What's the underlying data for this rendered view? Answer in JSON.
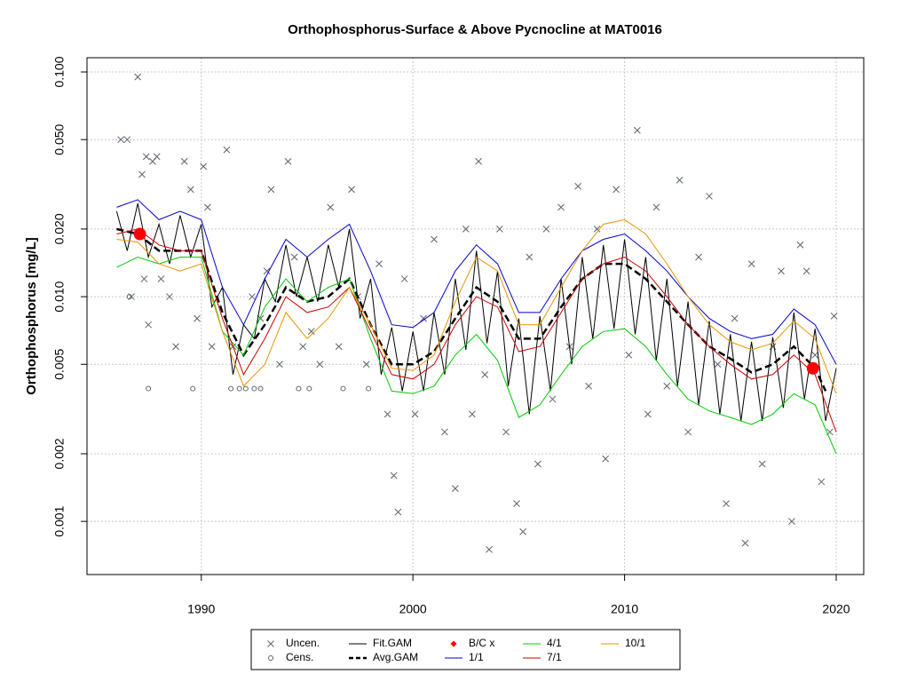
{
  "chart_data": {
    "type": "line",
    "title": "Orthophosphorus-Surface & Above Pycnocline at MAT0016",
    "y_label": "Orthophosphorus [mg/L]",
    "xlim": [
      1984.6,
      2021.3
    ],
    "xticks": [
      1990,
      2000,
      2010,
      2020
    ],
    "ylim": [
      0.00058,
      0.1157
    ],
    "log_y": true,
    "yticks": [
      0.001,
      0.002,
      0.005,
      {
        "value": 0.01,
        "label": "0.010"
      },
      {
        "value": 0.02,
        "label": "0.020"
      },
      {
        "value": 0.05,
        "label": "0.050"
      },
      {
        "value": 0.1,
        "label": "0.100"
      }
    ],
    "grid": true,
    "legend": "bottom",
    "series": [
      {
        "name": "Uncen.",
        "color": "#5a6470",
        "mode": "points",
        "marker": "x",
        "x": [
          1986.2,
          1986.5,
          1986.7,
          1987,
          1987.2,
          1987.4,
          1987.7,
          1987.9,
          1987.3,
          1987.5,
          1988.1,
          1988.5,
          1988.8,
          1989.2,
          1989.5,
          1989.8,
          1990.1,
          1990.3,
          1990.5,
          1991.2,
          1991.5,
          1992.4,
          1992.8,
          1993.1,
          1993.3,
          1993.7,
          1994.1,
          1994.4,
          1994.8,
          1995.2,
          1995.6,
          1996.1,
          1996.5,
          1997.1,
          1997.4,
          1997.8,
          1998.4,
          1998.8,
          1999.1,
          1999.3,
          1999.6,
          2000.1,
          2000.5,
          2001,
          2001.5,
          2002,
          2002.5,
          2002.8,
          2003.1,
          2003.4,
          2003.6,
          2004.1,
          2004.4,
          2004.9,
          2005.2,
          2005.5,
          2005.9,
          2006.3,
          2006.6,
          2007,
          2007.4,
          2007.8,
          2008.3,
          2008.7,
          2009.1,
          2009.6,
          2010.2,
          2010.6,
          2011.1,
          2011.5,
          2012,
          2012.6,
          2013,
          2013.5,
          2014,
          2014.4,
          2014.8,
          2015.2,
          2015.7,
          2016,
          2016.5,
          2017,
          2017.4,
          2017.9,
          2018.3,
          2018.6,
          2019,
          2019.3,
          2019.7,
          2019.9
        ],
        "values": [
          0.05,
          0.05,
          0.01,
          0.095,
          0.035,
          0.042,
          0.04,
          0.042,
          0.012,
          0.0075,
          0.012,
          0.01,
          0.006,
          0.04,
          0.03,
          0.008,
          0.038,
          0.025,
          0.006,
          0.045,
          0.006,
          0.01,
          0.008,
          0.013,
          0.03,
          0.005,
          0.04,
          0.015,
          0.006,
          0.007,
          0.005,
          0.025,
          0.006,
          0.03,
          0.01,
          0.005,
          0.014,
          0.003,
          0.0016,
          0.0011,
          0.012,
          0.003,
          0.008,
          0.018,
          0.0025,
          0.0014,
          0.02,
          0.003,
          0.04,
          0.0045,
          0.00075,
          0.02,
          0.0025,
          0.0012,
          0.0009,
          0.015,
          0.0018,
          0.02,
          0.0035,
          0.025,
          0.006,
          0.031,
          0.004,
          0.02,
          0.0019,
          0.03,
          0.0055,
          0.055,
          0.003,
          0.025,
          0.004,
          0.033,
          0.0025,
          0.015,
          0.028,
          0.005,
          0.0012,
          0.008,
          0.0008,
          0.014,
          0.0018,
          0.006,
          0.013,
          0.001,
          0.017,
          0.013,
          0.0055,
          0.0015,
          0.0025,
          0.0082
        ]
      },
      {
        "name": "Cens.",
        "color": "#5a6470",
        "mode": "points",
        "marker": "circle",
        "x": [
          1986.6,
          1987.5,
          1989.6,
          1991.4,
          1991.8,
          1992.1,
          1992.5,
          1992.8,
          1994.6,
          1995.1,
          1996.7,
          1997.9
        ],
        "values": [
          0.01,
          0.0039,
          0.0039,
          0.0039,
          0.0039,
          0.0039,
          0.0039,
          0.0039,
          0.0039,
          0.0039,
          0.0039,
          0.0039
        ]
      },
      {
        "name": "Fit.GAM",
        "color": "#000000",
        "mode": "line",
        "width": 1,
        "x": [
          1986,
          1986.5,
          1987,
          1987.5,
          1988,
          1988.5,
          1989,
          1989.5,
          1990,
          1990.5,
          1991,
          1991.5,
          1992,
          1992.5,
          1993,
          1993.5,
          1994,
          1994.5,
          1995,
          1995.5,
          1996,
          1996.5,
          1997,
          1997.5,
          1998,
          1998.5,
          1999,
          1999.5,
          2000,
          2000.5,
          2001,
          2001.5,
          2002,
          2002.5,
          2003,
          2003.5,
          2004,
          2004.5,
          2005,
          2005.5,
          2006,
          2006.5,
          2007,
          2007.5,
          2008,
          2008.5,
          2009,
          2009.5,
          2010,
          2010.5,
          2011,
          2011.5,
          2012,
          2012.5,
          2013,
          2013.5,
          2014,
          2014.5,
          2015,
          2015.5,
          2016,
          2016.5,
          2017,
          2017.5,
          2018,
          2018.5,
          2019,
          2019.5,
          2020
        ],
        "values": [
          0.024,
          0.016,
          0.026,
          0.015,
          0.021,
          0.014,
          0.023,
          0.015,
          0.021,
          0.009,
          0.011,
          0.0045,
          0.0075,
          0.0065,
          0.012,
          0.0095,
          0.017,
          0.01,
          0.015,
          0.0095,
          0.017,
          0.011,
          0.02,
          0.008,
          0.012,
          0.0045,
          0.0073,
          0.0038,
          0.007,
          0.0038,
          0.0085,
          0.0045,
          0.012,
          0.0058,
          0.016,
          0.0062,
          0.013,
          0.004,
          0.008,
          0.003,
          0.0082,
          0.0038,
          0.012,
          0.005,
          0.015,
          0.0065,
          0.017,
          0.0072,
          0.018,
          0.0068,
          0.015,
          0.0052,
          0.012,
          0.004,
          0.0095,
          0.0033,
          0.0078,
          0.003,
          0.0068,
          0.0028,
          0.0063,
          0.0028,
          0.0066,
          0.0032,
          0.0085,
          0.0035,
          0.0072,
          0.0028,
          0.0048
        ]
      },
      {
        "name": "Avg.GAM",
        "color": "#000000",
        "mode": "line",
        "width": 2.5,
        "dash": true,
        "x": [
          1986,
          1987,
          1988,
          1989,
          1990,
          1991,
          1992,
          1993,
          1994,
          1995,
          1996,
          1997,
          1998,
          1999,
          2000,
          2001,
          2002,
          2003,
          2004,
          2005,
          2006,
          2007,
          2008,
          2009,
          2010,
          2011,
          2012,
          2013,
          2014,
          2015,
          2016,
          2017,
          2018,
          2019,
          2019.5
        ],
        "values": [
          0.02,
          0.019,
          0.016,
          0.016,
          0.016,
          0.0085,
          0.0055,
          0.0075,
          0.011,
          0.0095,
          0.01,
          0.012,
          0.0075,
          0.005,
          0.005,
          0.0057,
          0.008,
          0.011,
          0.0095,
          0.0065,
          0.0065,
          0.009,
          0.012,
          0.014,
          0.014,
          0.012,
          0.0095,
          0.0075,
          0.006,
          0.0053,
          0.0046,
          0.005,
          0.006,
          0.0048,
          0.0038
        ]
      },
      {
        "name": "B/C x",
        "color": "#ff0000",
        "mode": "points",
        "marker": "dot",
        "x": [
          1987.1,
          2018.9
        ],
        "values": [
          0.019,
          0.0048
        ]
      },
      {
        "name": "1/1",
        "color": "#0000cc",
        "mode": "line",
        "width": 1,
        "x": [
          1986,
          1987,
          1988,
          1989,
          1990,
          1991,
          1992,
          1993,
          1994,
          1995,
          1996,
          1997,
          1998,
          1999,
          2000,
          2001,
          2002,
          2003,
          2004,
          2005,
          2006,
          2007,
          2008,
          2009,
          2010,
          2011,
          2012,
          2013,
          2014,
          2015,
          2016,
          2017,
          2018,
          2019,
          2020
        ],
        "values": [
          0.025,
          0.027,
          0.022,
          0.024,
          0.022,
          0.011,
          0.0075,
          0.012,
          0.018,
          0.015,
          0.018,
          0.021,
          0.013,
          0.0075,
          0.0073,
          0.0085,
          0.013,
          0.017,
          0.014,
          0.0085,
          0.0085,
          0.012,
          0.016,
          0.018,
          0.019,
          0.016,
          0.013,
          0.01,
          0.008,
          0.007,
          0.0065,
          0.0068,
          0.0088,
          0.0075,
          0.005
        ]
      },
      {
        "name": "4/1",
        "color": "#00cc00",
        "mode": "line",
        "width": 1,
        "x": [
          1986,
          1987,
          1988,
          1989,
          1990,
          1991,
          1992,
          1993,
          1994,
          1995,
          1996,
          1997,
          1998,
          1999,
          2000,
          2001,
          2002,
          2003,
          2004,
          2005,
          2006,
          2007,
          2008,
          2009,
          2010,
          2011,
          2012,
          2013,
          2014,
          2015,
          2016,
          2017,
          2018,
          2019,
          2020
        ],
        "values": [
          0.0135,
          0.015,
          0.014,
          0.015,
          0.015,
          0.007,
          0.0055,
          0.009,
          0.012,
          0.0095,
          0.011,
          0.012,
          0.0065,
          0.0038,
          0.0037,
          0.004,
          0.0055,
          0.0068,
          0.0052,
          0.0029,
          0.0033,
          0.0045,
          0.006,
          0.007,
          0.0072,
          0.006,
          0.0045,
          0.0035,
          0.0031,
          0.0029,
          0.0027,
          0.003,
          0.0037,
          0.0033,
          0.002
        ]
      },
      {
        "name": "7/1",
        "color": "#cc0000",
        "mode": "line",
        "width": 1,
        "x": [
          1986,
          1987,
          1988,
          1989,
          1990,
          1991,
          1992,
          1993,
          1994,
          1995,
          1996,
          1997,
          1998,
          1999,
          2000,
          2001,
          2002,
          2003,
          2004,
          2005,
          2006,
          2007,
          2008,
          2009,
          2010,
          2011,
          2012,
          2013,
          2014,
          2015,
          2016,
          2017,
          2018,
          2019,
          2020
        ],
        "values": [
          0.019,
          0.02,
          0.017,
          0.016,
          0.016,
          0.008,
          0.0045,
          0.0065,
          0.01,
          0.0085,
          0.009,
          0.011,
          0.007,
          0.0045,
          0.0043,
          0.005,
          0.0075,
          0.01,
          0.009,
          0.0057,
          0.006,
          0.0085,
          0.012,
          0.014,
          0.015,
          0.013,
          0.01,
          0.0075,
          0.006,
          0.005,
          0.0043,
          0.0045,
          0.0055,
          0.0045,
          0.0025
        ]
      },
      {
        "name": "10/1",
        "color": "#e69500",
        "mode": "line",
        "width": 1,
        "x": [
          1986,
          1987,
          1988,
          1989,
          1990,
          1991,
          1992,
          1993,
          1994,
          1995,
          1996,
          1997,
          1998,
          1999,
          2000,
          2001,
          2002,
          2003,
          2004,
          2005,
          2006,
          2007,
          2008,
          2009,
          2010,
          2011,
          2012,
          2013,
          2014,
          2015,
          2016,
          2017,
          2018,
          2019,
          2020
        ],
        "values": [
          0.018,
          0.0175,
          0.014,
          0.013,
          0.014,
          0.007,
          0.004,
          0.005,
          0.0085,
          0.0065,
          0.008,
          0.011,
          0.0075,
          0.0048,
          0.0047,
          0.0055,
          0.0095,
          0.015,
          0.013,
          0.0075,
          0.0075,
          0.011,
          0.016,
          0.021,
          0.022,
          0.019,
          0.014,
          0.01,
          0.0075,
          0.0063,
          0.0058,
          0.0062,
          0.0078,
          0.0065,
          0.0037
        ]
      }
    ]
  }
}
